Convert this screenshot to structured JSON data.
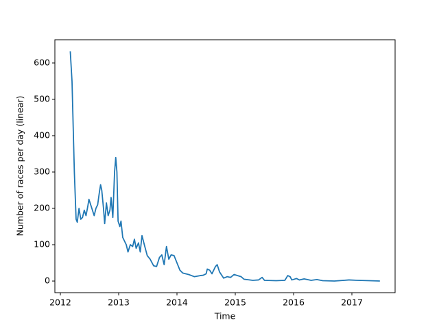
{
  "chart_data": {
    "type": "line",
    "xlabel": "Time",
    "ylabel": "Number of races per day (linear)",
    "x": [
      2012.17,
      2012.2,
      2012.24,
      2012.27,
      2012.29,
      2012.32,
      2012.35,
      2012.38,
      2012.41,
      2012.44,
      2012.47,
      2012.49,
      2012.52,
      2012.55,
      2012.58,
      2012.61,
      2012.64,
      2012.67,
      2012.69,
      2012.71,
      2012.74,
      2012.76,
      2012.79,
      2012.82,
      2012.85,
      2012.87,
      2012.9,
      2012.93,
      2012.95,
      2012.97,
      2012.99,
      2013.02,
      2013.04,
      2013.07,
      2013.1,
      2013.13,
      2013.16,
      2013.2,
      2013.24,
      2013.27,
      2013.3,
      2013.34,
      2013.37,
      2013.4,
      2013.44,
      2013.49,
      2013.54,
      2013.6,
      2013.65,
      2013.7,
      2013.74,
      2013.78,
      2013.82,
      2013.86,
      2013.9,
      2013.95,
      2014.0,
      2014.05,
      2014.1,
      2014.2,
      2014.3,
      2014.4,
      2014.45,
      2014.5,
      2014.52,
      2014.56,
      2014.6,
      2014.66,
      2014.69,
      2014.73,
      2014.8,
      2014.86,
      2014.92,
      2014.98,
      2015.04,
      2015.1,
      2015.15,
      2015.3,
      2015.4,
      2015.46,
      2015.5,
      2015.7,
      2015.85,
      2015.9,
      2015.94,
      2015.97,
      2016.05,
      2016.1,
      2016.18,
      2016.3,
      2016.4,
      2016.5,
      2016.7,
      2016.95,
      2017.1,
      2017.3,
      2017.48
    ],
    "series": [
      {
        "color": "#1f77b4",
        "values": [
          632,
          550,
          300,
          170,
          162,
          200,
          170,
          175,
          195,
          180,
          205,
          225,
          210,
          195,
          180,
          200,
          210,
          245,
          265,
          250,
          200,
          158,
          215,
          180,
          195,
          230,
          175,
          300,
          340,
          300,
          165,
          150,
          165,
          120,
          110,
          100,
          80,
          100,
          95,
          115,
          90,
          105,
          80,
          125,
          100,
          70,
          60,
          42,
          40,
          65,
          72,
          45,
          95,
          60,
          72,
          70,
          50,
          30,
          22,
          18,
          12,
          15,
          16,
          20,
          33,
          30,
          20,
          40,
          45,
          25,
          8,
          12,
          10,
          18,
          15,
          12,
          5,
          2,
          3,
          10,
          2,
          1,
          2,
          15,
          12,
          3,
          7,
          3,
          6,
          2,
          4,
          1,
          0,
          3,
          2,
          1,
          0
        ]
      }
    ],
    "xlim": [
      2011.906,
      2017.741
    ],
    "xticks": [
      2012,
      2013,
      2014,
      2015,
      2016,
      2017
    ],
    "ylim": [
      -32,
      664
    ],
    "yticks": [
      0,
      100,
      200,
      300,
      400,
      500,
      600
    ]
  }
}
